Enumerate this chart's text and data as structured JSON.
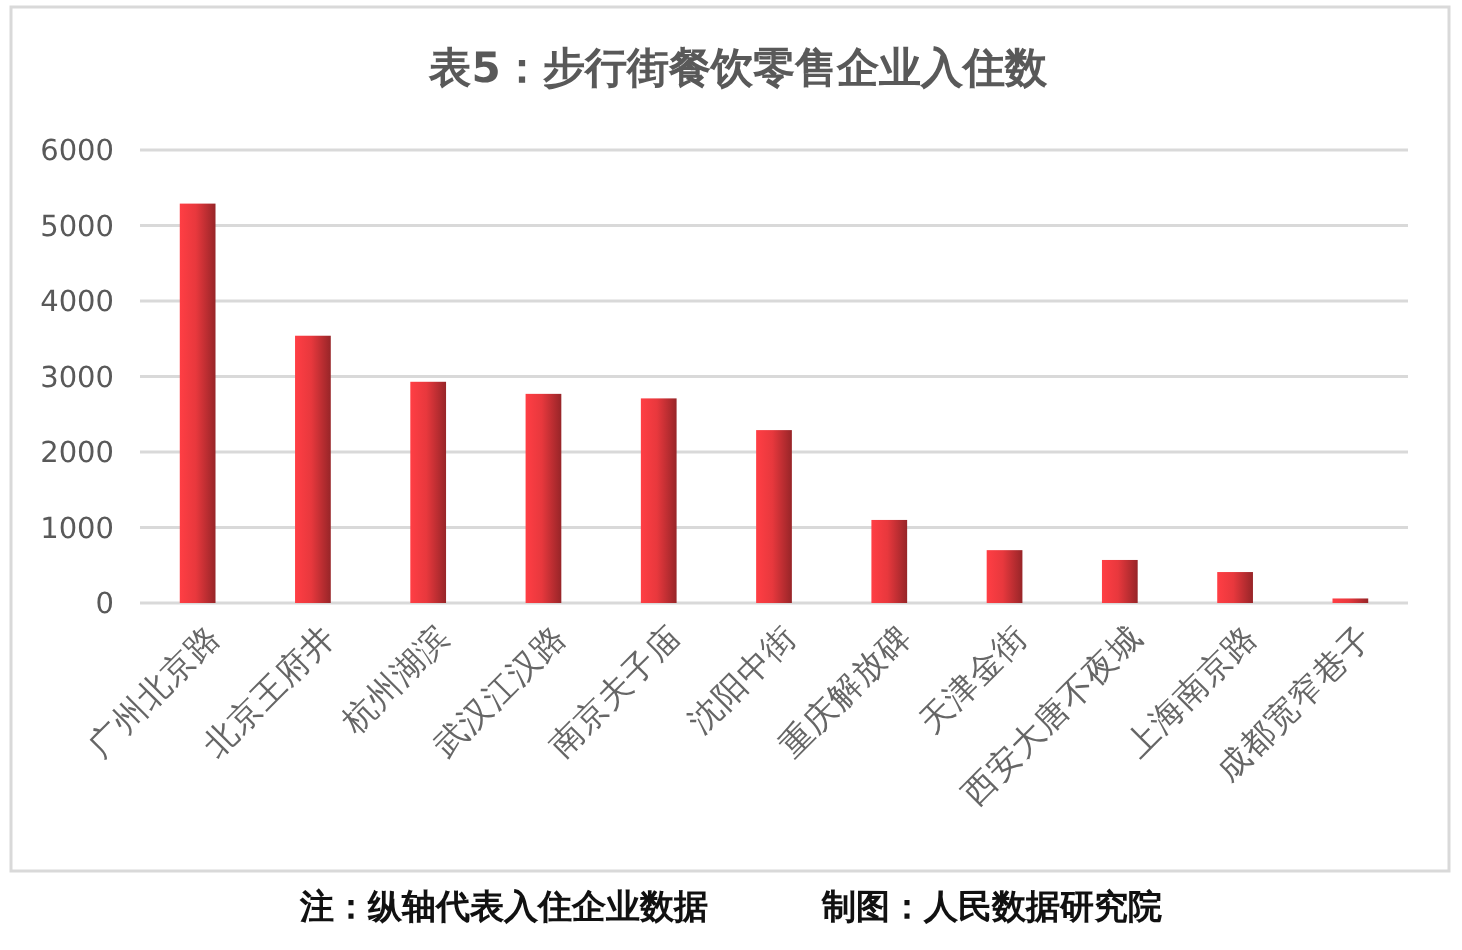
{
  "chart_data": {
    "type": "bar",
    "title": "表5：步行街餐饮零售企业入住数",
    "categories": [
      "广州北京路",
      "北京王府井",
      "杭州湖滨",
      "武汉江汉路",
      "南京夫子庙",
      "沈阳中街",
      "重庆解放碑",
      "天津金街",
      "西安大唐不夜城",
      "上海南京路",
      "成都宽窄巷子"
    ],
    "values": [
      5290,
      3540,
      2930,
      2770,
      2710,
      2290,
      1100,
      700,
      570,
      410,
      60
    ],
    "color": "#e8383d",
    "ylim": [
      0,
      6000
    ],
    "yticks": [
      0,
      1000,
      2000,
      3000,
      4000,
      5000,
      6000
    ],
    "grid": "y",
    "annotations": [
      "注：纵轴代表入住企业数据",
      "制图：人民数据研究院"
    ]
  }
}
